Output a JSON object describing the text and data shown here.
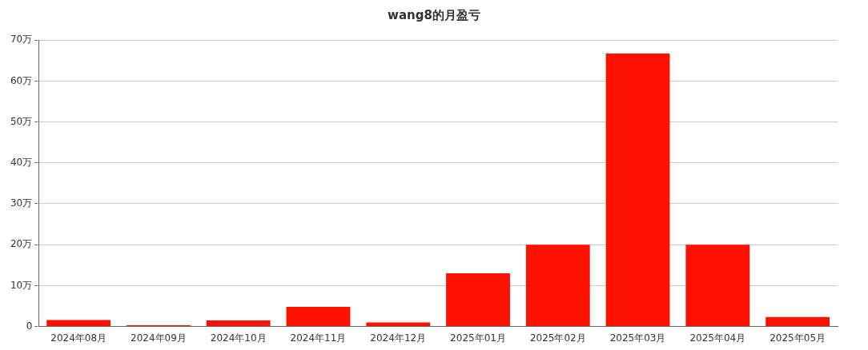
{
  "chart_data": {
    "type": "bar",
    "title": "wang8的月盈亏",
    "categories": [
      "2024年08月",
      "2024年09月",
      "2024年10月",
      "2024年11月",
      "2024年12月",
      "2025年01月",
      "2025年02月",
      "2025年03月",
      "2025年04月",
      "2025年05月"
    ],
    "values": [
      1.6,
      0.3,
      1.5,
      4.8,
      1.0,
      13.0,
      20.0,
      66.7,
      20.0,
      2.3
    ],
    "color": "#ff1100",
    "ylim": [
      0,
      70
    ],
    "yticks": [
      {
        "value": 0,
        "label": "0"
      },
      {
        "value": 10,
        "label": "10万"
      },
      {
        "value": 20,
        "label": "20万"
      },
      {
        "value": 30,
        "label": "30万"
      },
      {
        "value": 40,
        "label": "40万"
      },
      {
        "value": 50,
        "label": "50万"
      },
      {
        "value": 60,
        "label": "60万"
      },
      {
        "value": 70,
        "label": "70万"
      }
    ],
    "grid": "y",
    "legend": false
  }
}
